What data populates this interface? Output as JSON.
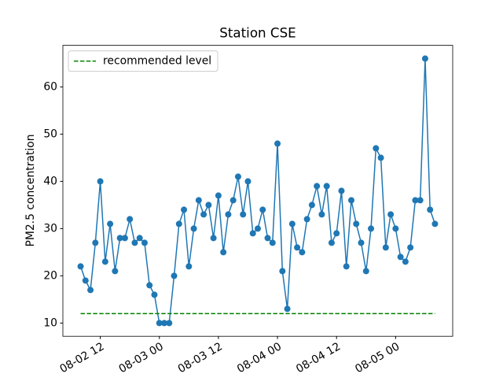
{
  "chart_data": {
    "type": "line",
    "title": "Station CSE",
    "ylabel": "PM2.5 concentration",
    "x": [
      "08-02 08",
      "08-02 09",
      "08-02 10",
      "08-02 11",
      "08-02 12",
      "08-02 13",
      "08-02 14",
      "08-02 15",
      "08-02 16",
      "08-02 17",
      "08-02 18",
      "08-02 19",
      "08-02 20",
      "08-02 21",
      "08-02 22",
      "08-02 23",
      "08-03 00",
      "08-03 01",
      "08-03 02",
      "08-03 03",
      "08-03 04",
      "08-03 05",
      "08-03 06",
      "08-03 07",
      "08-03 08",
      "08-03 09",
      "08-03 10",
      "08-03 11",
      "08-03 12",
      "08-03 13",
      "08-03 14",
      "08-03 15",
      "08-03 16",
      "08-03 17",
      "08-03 18",
      "08-03 19",
      "08-03 20",
      "08-03 21",
      "08-03 22",
      "08-03 23",
      "08-04 00",
      "08-04 01",
      "08-04 02",
      "08-04 03",
      "08-04 04",
      "08-04 05",
      "08-04 06",
      "08-04 07",
      "08-04 08",
      "08-04 09",
      "08-04 10",
      "08-04 11",
      "08-04 12",
      "08-04 13",
      "08-04 14",
      "08-04 15",
      "08-04 16",
      "08-04 17",
      "08-04 18",
      "08-04 19",
      "08-04 20",
      "08-04 21",
      "08-04 22",
      "08-04 23",
      "08-05 00",
      "08-05 01",
      "08-05 02",
      "08-05 03",
      "08-05 04",
      "08-05 05",
      "08-05 06",
      "08-05 07",
      "08-05 08"
    ],
    "series": [
      {
        "color": "#1f77b4",
        "marker": true,
        "values": [
          22,
          19,
          17,
          27,
          40,
          23,
          31,
          21,
          28,
          28,
          32,
          27,
          28,
          27,
          18,
          16,
          10,
          10,
          10,
          20,
          31,
          34,
          22,
          30,
          36,
          33,
          35,
          28,
          37,
          25,
          33,
          36,
          41,
          33,
          40,
          29,
          30,
          34,
          28,
          27,
          48,
          21,
          13,
          31,
          26,
          25,
          32,
          35,
          39,
          33,
          39,
          27,
          29,
          38,
          22,
          36,
          31,
          27,
          21,
          30,
          47,
          45,
          26,
          33,
          30,
          24,
          23,
          26,
          36,
          36,
          66,
          34,
          31
        ]
      },
      {
        "name": "recommended level",
        "color": "#008000",
        "linestyle": "dashed",
        "x": [
          "08-02 08",
          "08-05 08"
        ],
        "values": [
          12,
          12
        ]
      }
    ],
    "xlim": [
      "08-02 04:24",
      "08-05 11:36"
    ],
    "xticks": [
      "08-02 12",
      "08-03 00",
      "08-03 12",
      "08-04 00",
      "08-04 12",
      "08-05 00"
    ],
    "ylim": [
      7.2,
      68.8
    ],
    "yticks": [
      10,
      20,
      30,
      40,
      50,
      60
    ],
    "legend": "upper left"
  }
}
